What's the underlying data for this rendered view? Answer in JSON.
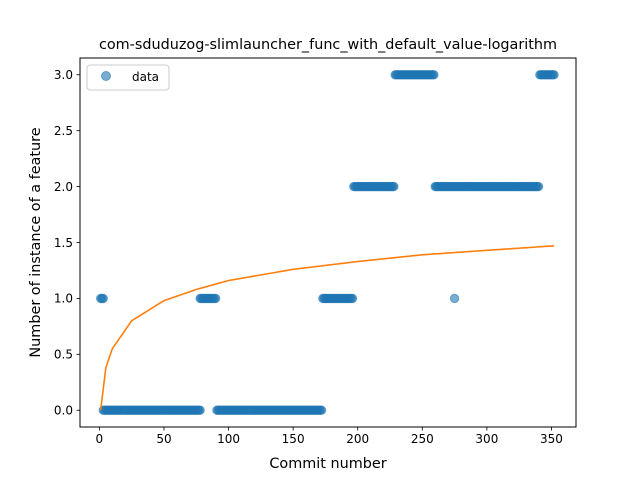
{
  "chart_data": {
    "type": "scatter",
    "title": "com-sduduzog-slimlauncher_func_with_default_value-logarithm",
    "xlabel": "Commit number",
    "ylabel": "Number of instance of a feature",
    "xlim": [
      -15,
      369
    ],
    "ylim": [
      -0.15,
      3.15
    ],
    "xticks": [
      0,
      50,
      100,
      150,
      200,
      250,
      300,
      350
    ],
    "yticks": [
      0.0,
      0.5,
      1.0,
      1.5,
      2.0,
      2.5,
      3.0
    ],
    "xtick_labels": [
      "0",
      "50",
      "100",
      "150",
      "200",
      "250",
      "300",
      "350"
    ],
    "ytick_labels": [
      "0.0",
      "0.5",
      "1.0",
      "1.5",
      "2.0",
      "2.5",
      "3.0"
    ],
    "legend": {
      "position": "top-left",
      "entries": [
        "data"
      ]
    },
    "grid": false,
    "colors": {
      "data": "#1f77b4",
      "fit": "#ff7f0e"
    },
    "series": [
      {
        "name": "data",
        "kind": "scatter",
        "segments": [
          {
            "x_start": 1,
            "x_end": 3,
            "y": 1
          },
          {
            "x_start": 3,
            "x_end": 78,
            "y": 0
          },
          {
            "x_start": 78,
            "x_end": 90,
            "y": 1
          },
          {
            "x_start": 91,
            "x_end": 172,
            "y": 0
          },
          {
            "x_start": 173,
            "x_end": 196,
            "y": 1
          },
          {
            "x_start": 197,
            "x_end": 228,
            "y": 2
          },
          {
            "x_start": 229,
            "x_end": 259,
            "y": 3
          },
          {
            "x_start": 260,
            "x_end": 340,
            "y": 2
          },
          {
            "x_start": 341,
            "x_end": 352,
            "y": 3
          }
        ],
        "points": [
          {
            "x": 275,
            "y": 1
          }
        ]
      },
      {
        "kind": "line",
        "model": "logarithm",
        "x_range": [
          1,
          352
        ],
        "curve_points": [
          {
            "x": 1,
            "y": 0.0
          },
          {
            "x": 5,
            "y": 0.38
          },
          {
            "x": 10,
            "y": 0.55
          },
          {
            "x": 25,
            "y": 0.8
          },
          {
            "x": 50,
            "y": 0.98
          },
          {
            "x": 75,
            "y": 1.08
          },
          {
            "x": 100,
            "y": 1.16
          },
          {
            "x": 150,
            "y": 1.26
          },
          {
            "x": 200,
            "y": 1.33
          },
          {
            "x": 250,
            "y": 1.39
          },
          {
            "x": 300,
            "y": 1.43
          },
          {
            "x": 352,
            "y": 1.47
          }
        ]
      }
    ]
  }
}
